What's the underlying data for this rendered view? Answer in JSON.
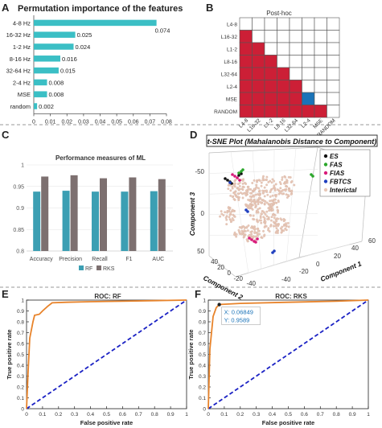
{
  "panels": {
    "A": {
      "letter": "A"
    },
    "B": {
      "letter": "B"
    },
    "C": {
      "letter": "C"
    },
    "D": {
      "letter": "D"
    },
    "E": {
      "letter": "E"
    },
    "F": {
      "letter": "F"
    }
  },
  "colors": {
    "bar_teal": "#3bbfc5",
    "rf_blue": "#3c9fb3",
    "rks_gray": "#7d7070",
    "matrix_red": "#cc1f36",
    "matrix_blue": "#1a73b8",
    "roc_orange": "#e8832a",
    "chance_blue": "#1a21c4"
  },
  "chart_data": [
    {
      "id": "A",
      "type": "bar",
      "orientation": "horizontal",
      "title": "Permutation importance of the features",
      "categories": [
        "4-8 Hz",
        "16-32 Hz",
        "1-2 Hz",
        "8-16 Hz",
        "32-64 Hz",
        "2-4 Hz",
        "MSE",
        "random"
      ],
      "values": [
        0.074,
        0.025,
        0.024,
        0.016,
        0.015,
        0.008,
        0.008,
        0.002
      ],
      "value_labels": [
        "0.074",
        "0.025",
        "0.024",
        "0.016",
        "0.015",
        "0.008",
        "0.008",
        "0.002"
      ],
      "xlim": [
        0,
        0.08
      ],
      "xticks": [
        "0",
        "0.01",
        "0.02",
        "0.03",
        "0.04",
        "0.05",
        "0.06",
        "0.07",
        "0.08"
      ]
    },
    {
      "id": "B",
      "type": "heatmap",
      "title": "Post-hoc",
      "rows": [
        "L4-8",
        "L16-32",
        "L1-2",
        "L8-16",
        "L32-64",
        "L2-4",
        "MSE",
        "RANDOM"
      ],
      "cols": [
        "L4-8",
        "L16-32",
        "L1-2",
        "L8-16",
        "L32-64",
        "L2-4",
        "MSE",
        "RANDOM"
      ],
      "cells": [
        [
          0,
          0,
          0,
          0,
          0,
          0,
          0,
          0
        ],
        [
          1,
          0,
          0,
          0,
          0,
          0,
          0,
          0
        ],
        [
          1,
          1,
          0,
          0,
          0,
          0,
          0,
          0
        ],
        [
          1,
          1,
          1,
          0,
          0,
          0,
          0,
          0
        ],
        [
          1,
          1,
          1,
          1,
          0,
          0,
          0,
          0
        ],
        [
          1,
          1,
          1,
          1,
          1,
          0,
          0,
          0
        ],
        [
          1,
          1,
          1,
          1,
          1,
          2,
          0,
          0
        ],
        [
          1,
          1,
          1,
          1,
          1,
          1,
          1,
          0
        ]
      ]
    },
    {
      "id": "C",
      "type": "bar",
      "title": "Performance measures of ML",
      "categories": [
        "Accuracy",
        "Precision",
        "Recall",
        "F1",
        "AUC"
      ],
      "series": [
        {
          "name": "RF",
          "values": [
            0.938,
            0.94,
            0.938,
            0.938,
            0.939
          ]
        },
        {
          "name": "RKS",
          "values": [
            0.973,
            0.976,
            0.969,
            0.971,
            0.967
          ]
        }
      ],
      "ylim": [
        0.8,
        1.0
      ],
      "yticks": [
        "0.8",
        "0.85",
        "0.9",
        "0.95",
        "1"
      ]
    },
    {
      "id": "D",
      "type": "scatter",
      "title": "t-SNE Plot (Mahalanobis Distance to Component)",
      "zlabel": "Component 3",
      "xlabel": "Component 2",
      "ylabel": "Component 1",
      "zticks": [
        "-50",
        "0",
        "50"
      ],
      "xticks": [
        "40",
        "20",
        "0",
        "-20",
        "-40"
      ],
      "yticks": [
        "-40",
        "-20",
        "0",
        "20",
        "40",
        "60"
      ],
      "legend": [
        "ES",
        "FAS",
        "FIAS",
        "FBTCS",
        "Interictal"
      ],
      "legend_colors": [
        "#111111",
        "#2aa62a",
        "#d81b7a",
        "#1f3fbf",
        "#e8c8b8"
      ]
    },
    {
      "id": "E",
      "type": "line",
      "title": "ROC: RF",
      "xlabel": "False positive rate",
      "ylabel": "True positive rate",
      "xlim": [
        0,
        1
      ],
      "ylim": [
        0,
        1
      ],
      "xticks": [
        "0",
        "0.1",
        "0.2",
        "0.3",
        "0.4",
        "0.5",
        "0.6",
        "0.7",
        "0.8",
        "0.9",
        "1"
      ],
      "yticks": [
        "0",
        "0.1",
        "0.2",
        "0.3",
        "0.4",
        "0.5",
        "0.6",
        "0.7",
        "0.8",
        "0.9",
        "1"
      ],
      "roc": {
        "x": [
          0,
          0.01,
          0.02,
          0.04,
          0.05,
          0.08,
          0.1,
          0.13,
          0.16,
          0.25,
          0.4,
          0.6,
          0.8,
          1
        ],
        "y": [
          0,
          0.35,
          0.65,
          0.8,
          0.86,
          0.87,
          0.9,
          0.94,
          0.975,
          0.98,
          0.985,
          0.99,
          0.995,
          1
        ]
      },
      "chance": {
        "x": [
          0,
          1
        ],
        "y": [
          0,
          1
        ]
      }
    },
    {
      "id": "F",
      "type": "line",
      "title": "ROC: RKS",
      "xlabel": "False positive rate",
      "ylabel": "True positive rate",
      "xlim": [
        0,
        1
      ],
      "ylim": [
        0,
        1
      ],
      "xticks": [
        "0",
        "0.1",
        "0.2",
        "0.3",
        "0.4",
        "0.5",
        "0.6",
        "0.7",
        "0.8",
        "0.9",
        "1"
      ],
      "yticks": [
        "0",
        "0.1",
        "0.2",
        "0.3",
        "0.4",
        "0.5",
        "0.6",
        "0.7",
        "0.8",
        "0.9",
        "1"
      ],
      "roc": {
        "x": [
          0,
          0.01,
          0.03,
          0.05,
          0.06849,
          0.2,
          0.5,
          0.8,
          1
        ],
        "y": [
          0,
          0.55,
          0.85,
          0.93,
          0.9589,
          0.97,
          0.98,
          0.99,
          1
        ]
      },
      "chance": {
        "x": [
          0,
          1
        ],
        "y": [
          0,
          1
        ]
      },
      "datatip": {
        "x_label": "X: 0.06849",
        "y_label": "Y: 0.9589",
        "x": 0.06849,
        "y": 0.9589
      }
    }
  ]
}
